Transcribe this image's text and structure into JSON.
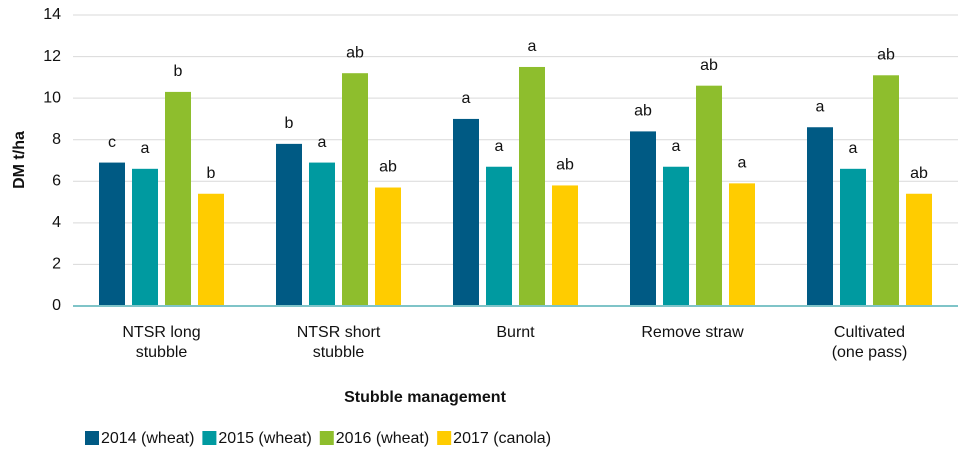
{
  "chart_data": {
    "type": "bar",
    "categories": [
      "NTSR long\nstubble",
      "NTSR short\nstubble",
      "Burnt",
      "Remove straw",
      "Cultivated\n(one pass)"
    ],
    "series": [
      {
        "name": "2014 (wheat)",
        "color": "#005a84",
        "values": [
          6.9,
          7.8,
          9.0,
          8.4,
          8.6
        ],
        "annotations": [
          "c",
          "b",
          "a",
          "ab",
          "a"
        ]
      },
      {
        "name": "2015 (wheat)",
        "color": "#009aa0",
        "values": [
          6.6,
          6.9,
          6.7,
          6.7,
          6.6
        ],
        "annotations": [
          "a",
          "a",
          "a",
          "a",
          "a"
        ]
      },
      {
        "name": "2016 (wheat)",
        "color": "#8ebe2d",
        "values": [
          10.3,
          11.2,
          11.5,
          10.6,
          11.1
        ],
        "annotations": [
          "b",
          "ab",
          "a",
          "ab",
          "ab"
        ]
      },
      {
        "name": "2017 (canola)",
        "color": "#ffcc00",
        "values": [
          5.4,
          5.7,
          5.8,
          5.9,
          5.4
        ],
        "annotations": [
          "b",
          "ab",
          "ab",
          "a",
          "ab"
        ]
      }
    ],
    "xlabel": "Stubble management",
    "ylabel": "DM t/ha",
    "ylim": [
      0,
      14
    ],
    "yticks": [
      0,
      2,
      4,
      6,
      8,
      10,
      12,
      14
    ],
    "grid": true,
    "legend": "bottom-left"
  }
}
